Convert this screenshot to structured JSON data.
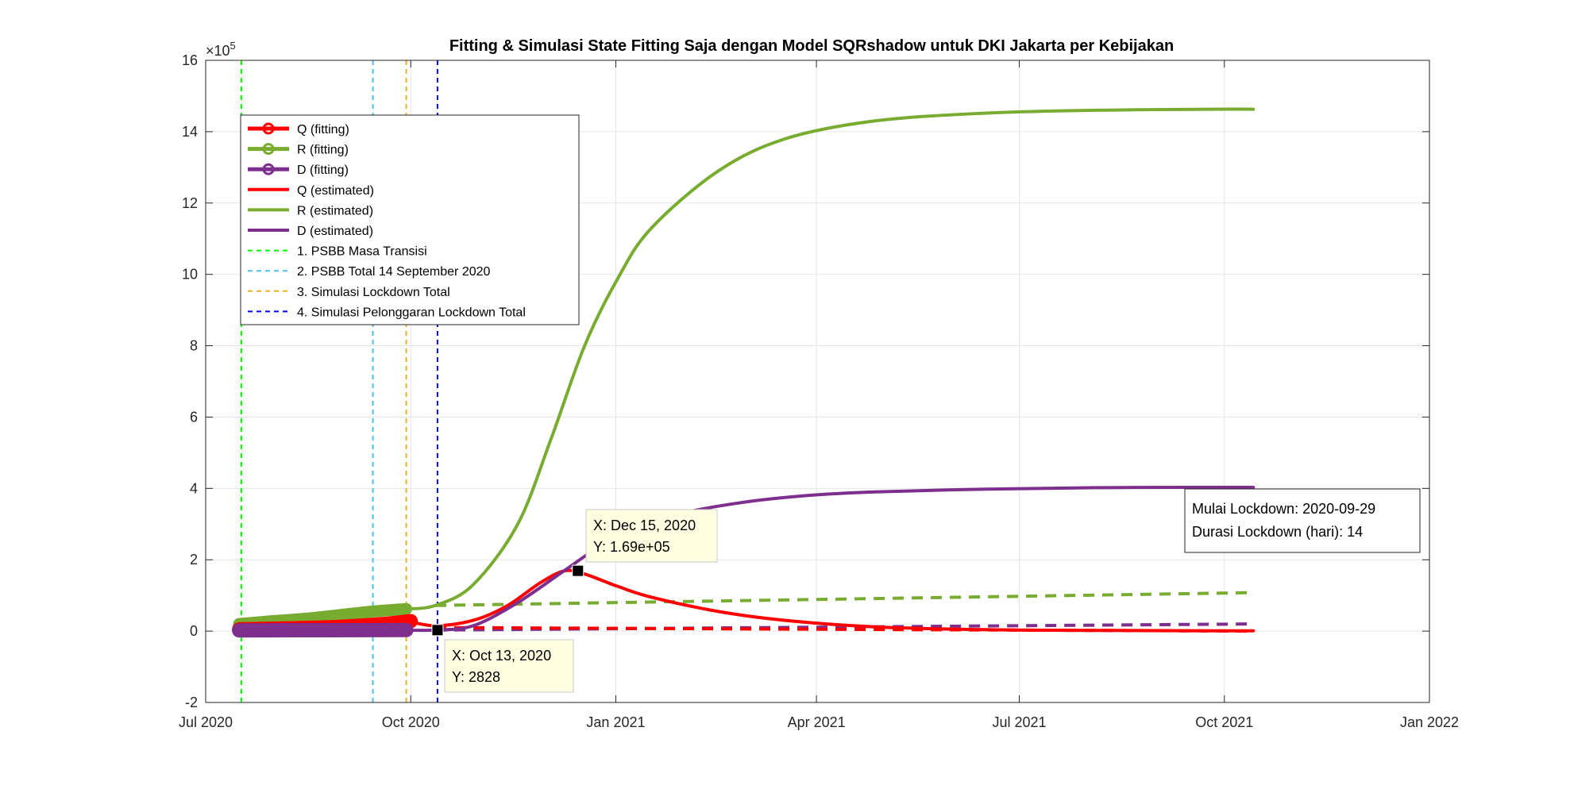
{
  "chart_data": {
    "type": "line",
    "title": "Fitting & Simulasi State Fitting Saja dengan Model SQRshadow untuk DKI Jakarta per Kebijakan",
    "xlabel": "",
    "ylabel": "",
    "y_exponent_label": "×10",
    "y_exponent_power": "5",
    "x_range_days": [
      0,
      549
    ],
    "x_ticks": [
      {
        "day": 0,
        "label": "Jul 2020"
      },
      {
        "day": 92,
        "label": "Oct 2020"
      },
      {
        "day": 184,
        "label": "Jan 2021"
      },
      {
        "day": 274,
        "label": "Apr 2021"
      },
      {
        "day": 365,
        "label": "Jul 2021"
      },
      {
        "day": 457,
        "label": "Oct 2021"
      },
      {
        "day": 549,
        "label": "Jan 2022"
      }
    ],
    "ylim": [
      -2,
      16
    ],
    "y_ticks": [
      {
        "value": -2,
        "label": "-2"
      },
      {
        "value": 0,
        "label": "0"
      },
      {
        "value": 2,
        "label": "2"
      },
      {
        "value": 4,
        "label": "4"
      },
      {
        "value": 6,
        "label": "6"
      },
      {
        "value": 8,
        "label": "8"
      },
      {
        "value": 10,
        "label": "10"
      },
      {
        "value": 12,
        "label": "12"
      },
      {
        "value": 14,
        "label": "14"
      },
      {
        "value": 16,
        "label": "16"
      }
    ],
    "grid": true,
    "series": [
      {
        "name": "Q (fitting)",
        "color": "#ff0000",
        "style": "solid-thick-circles",
        "x": [
          15,
          40,
          60,
          80,
          92
        ],
        "y": [
          0.05,
          0.08,
          0.12,
          0.2,
          0.28
        ]
      },
      {
        "name": "R (fitting)",
        "color": "#77ac30",
        "style": "solid-thick-circles",
        "x": [
          15,
          30,
          45,
          60,
          75,
          90
        ],
        "y": [
          0.2,
          0.28,
          0.35,
          0.45,
          0.55,
          0.62
        ]
      },
      {
        "name": "D (fitting)",
        "color": "#7e2f8e",
        "style": "solid-thick-circles",
        "x": [
          15,
          90
        ],
        "y": [
          0.02,
          0.03
        ]
      },
      {
        "name": "Q (estimated)",
        "color": "#ff0000",
        "style": "solid",
        "x": [
          90,
          103,
          120,
          135,
          150,
          161,
          170,
          185,
          200,
          230,
          260,
          300,
          350,
          400,
          450,
          470
        ],
        "y": [
          0.29,
          0.15,
          0.3,
          0.7,
          1.35,
          1.69,
          1.6,
          1.25,
          0.95,
          0.55,
          0.3,
          0.12,
          0.04,
          0.02,
          0.01,
          0.01
        ]
      },
      {
        "name": "R (estimated)",
        "color": "#77ac30",
        "style": "solid",
        "x": [
          90,
          103,
          120,
          140,
          155,
          170,
          185,
          200,
          230,
          260,
          300,
          350,
          400,
          450,
          470
        ],
        "y": [
          0.62,
          0.72,
          1.3,
          3.0,
          5.4,
          8.0,
          9.9,
          11.3,
          12.9,
          13.8,
          14.3,
          14.52,
          14.6,
          14.63,
          14.63
        ]
      },
      {
        "name": "D (estimated)",
        "color": "#7e2f8e",
        "style": "solid",
        "x": [
          90,
          103,
          120,
          140,
          161,
          175,
          190,
          210,
          240,
          270,
          300,
          350,
          400,
          450,
          470
        ],
        "y": [
          0.03,
          0.03,
          0.15,
          0.8,
          1.7,
          2.3,
          2.8,
          3.25,
          3.6,
          3.8,
          3.9,
          3.98,
          4.02,
          4.03,
          4.03
        ]
      },
      {
        "name": "R (baseline dashed)",
        "color": "#77ac30",
        "style": "dashed",
        "in_legend": false,
        "x": [
          103,
          470
        ],
        "y": [
          0.72,
          1.08
        ]
      },
      {
        "name": "D (baseline dashed)",
        "color": "#7e2f8e",
        "style": "dashed",
        "in_legend": false,
        "x": [
          103,
          470
        ],
        "y": [
          0.03,
          0.2
        ]
      },
      {
        "name": "Q (baseline dashed)",
        "color": "#ff0000",
        "style": "dashed",
        "in_legend": false,
        "x": [
          103,
          470
        ],
        "y": [
          0.1,
          0.0
        ]
      }
    ],
    "vertical_lines": [
      {
        "name": "1. PSBB Masa Transisi",
        "day": 16,
        "color": "#00ff00"
      },
      {
        "name": "2. PSBB Total 14 September 2020",
        "day": 75,
        "color": "#4dbeee"
      },
      {
        "name": "3. Simulasi Lockdown Total",
        "day": 90,
        "color": "#edb120"
      },
      {
        "name": "4. Simulasi Pelonggaran Lockdown Total",
        "day": 104,
        "color": "#0000ff"
      }
    ],
    "legend_position": "top-left",
    "data_tips": [
      {
        "day": 104,
        "y": 0.028,
        "label_x": "X: Oct 13, 2020",
        "label_y": "Y: 2828"
      },
      {
        "day": 167,
        "y": 1.69,
        "label_x": "X: Dec 15, 2020",
        "label_y": "Y: 1.69e+05"
      }
    ],
    "annotation": {
      "line1": "Mulai Lockdown: 2020-09-29",
      "line2": "Durasi Lockdown (hari): 14"
    }
  }
}
